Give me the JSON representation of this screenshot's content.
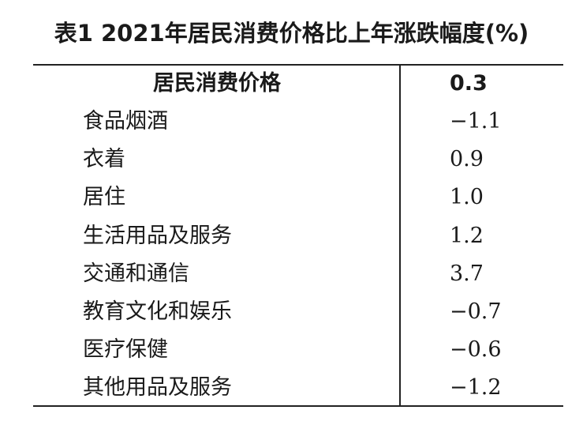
{
  "title": "表1  2021年居民消费价格比上年涨跌幅度(%)",
  "table": {
    "header": [
      "居民消费价格",
      "0.3"
    ],
    "rows": [
      [
        "食品烟酒",
        "−1.1"
      ],
      [
        "衣着",
        "0.9"
      ],
      [
        "居住",
        "1.0"
      ],
      [
        "生活用品及服务",
        "1.2"
      ],
      [
        "交通和通信",
        "3.7"
      ],
      [
        "教育文化和娱乐",
        "−0.7"
      ],
      [
        "医疗保健",
        "−0.6"
      ],
      [
        "其他用品及服务",
        "−1.2"
      ]
    ]
  }
}
